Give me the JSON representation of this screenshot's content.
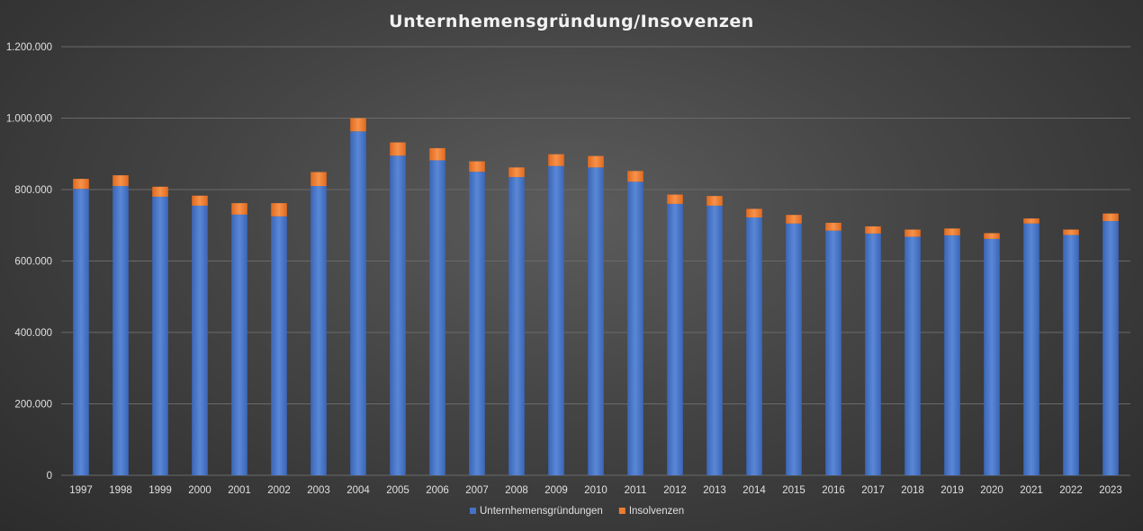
{
  "chart_data": {
    "type": "bar",
    "stacked": true,
    "title": "Unternhemensgründung/Insovenzen",
    "xlabel": "",
    "ylabel": "",
    "ylim": [
      0,
      1200000
    ],
    "yticks": [
      0,
      200000,
      400000,
      600000,
      800000,
      1000000,
      1200000
    ],
    "ytick_labels": [
      "0",
      "200.000",
      "400.000",
      "600.000",
      "800.000",
      "1.000.000",
      "1.200.000"
    ],
    "grid": true,
    "legend_position": "bottom",
    "categories": [
      "1997",
      "1998",
      "1999",
      "2000",
      "2001",
      "2002",
      "2003",
      "2004",
      "2005",
      "2006",
      "2007",
      "2008",
      "2009",
      "2010",
      "2011",
      "2012",
      "2013",
      "2014",
      "2015",
      "2016",
      "2017",
      "2018",
      "2019",
      "2020",
      "2021",
      "2022",
      "2023"
    ],
    "series": [
      {
        "name": "Unternhemensgründungen",
        "color": "#4472c4",
        "values": [
          802000,
          810000,
          780000,
          755000,
          730000,
          725000,
          810000,
          963000,
          895000,
          882000,
          850000,
          835000,
          866000,
          862000,
          822000,
          760000,
          755000,
          722000,
          705000,
          685000,
          677000,
          668000,
          672000,
          662000,
          705000,
          673000,
          712000
        ]
      },
      {
        "name": "Insolvenzen",
        "color": "#ed7d31",
        "values": [
          28000,
          30000,
          28000,
          28000,
          32000,
          37000,
          39000,
          37000,
          37000,
          34000,
          29000,
          27000,
          33000,
          32000,
          30000,
          26000,
          27000,
          24000,
          24000,
          22000,
          20000,
          20000,
          19000,
          16000,
          14000,
          15000,
          21000
        ]
      }
    ]
  }
}
